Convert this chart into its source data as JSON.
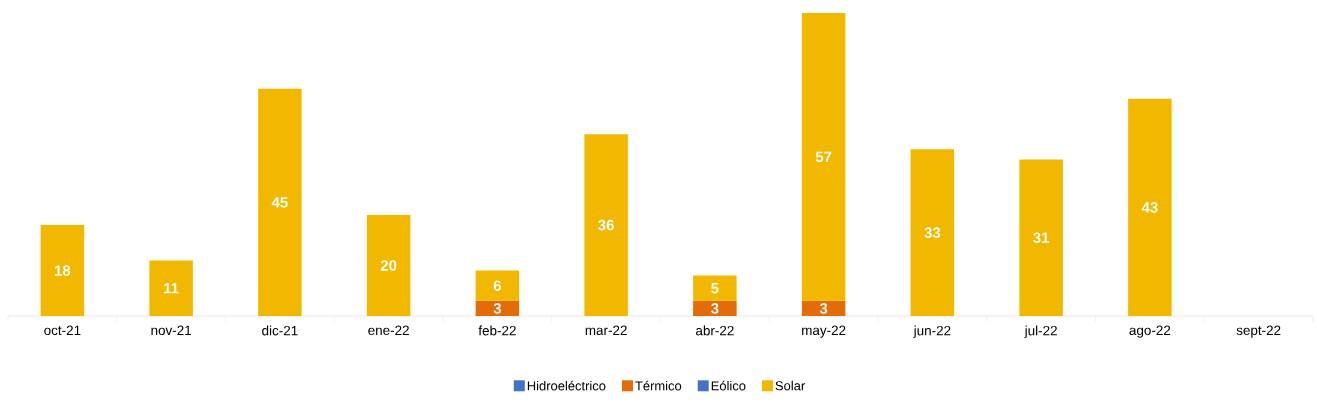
{
  "chart_data": {
    "type": "bar",
    "stacked": true,
    "data_labels": true,
    "legend": "bottom",
    "categories": [
      "oct-21",
      "nov-21",
      "dic-21",
      "ene-22",
      "feb-22",
      "mar-22",
      "abr-22",
      "may-22",
      "jun-22",
      "jul-22",
      "ago-22",
      "sept-22"
    ],
    "series": [
      {
        "name": "Hidroeléctrico",
        "color": "#4472c4",
        "values": [
          null,
          null,
          null,
          null,
          null,
          null,
          null,
          null,
          null,
          null,
          null,
          null
        ]
      },
      {
        "name": "Térmico",
        "color": "#e36c09",
        "values": [
          null,
          null,
          null,
          null,
          3,
          null,
          3,
          3,
          null,
          null,
          null,
          null
        ]
      },
      {
        "name": "Eólico",
        "color": "#4472c4",
        "values": [
          null,
          null,
          null,
          null,
          null,
          null,
          null,
          null,
          null,
          null,
          null,
          null
        ]
      },
      {
        "name": "Solar",
        "color": "#f2b800",
        "values": [
          18,
          11,
          45,
          20,
          6,
          36,
          5,
          57,
          33,
          31,
          43,
          null
        ]
      }
    ]
  }
}
